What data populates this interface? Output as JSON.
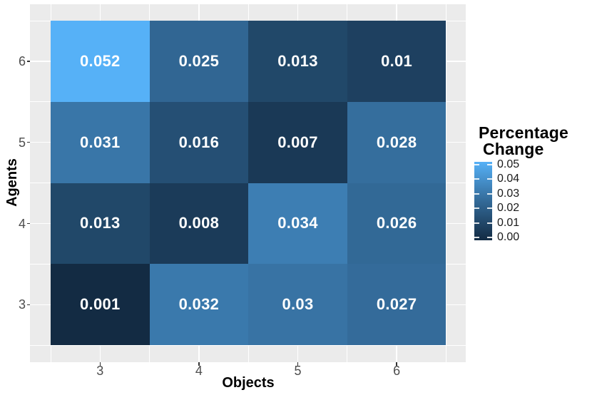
{
  "figure": {
    "background": "#FFFFFF",
    "panel_background": "#EBEBEB",
    "gridline_color": "#FFFFFF",
    "axis_text_color": "#4D4D4D",
    "axis_title_color": "#000000",
    "tick_mark_color": "#333333",
    "cell_text_color": "#FFFFFF"
  },
  "chart_data": {
    "type": "heatmap",
    "xlabel": "Objects",
    "ylabel": "Agents",
    "x_ticks": [
      "3",
      "4",
      "5",
      "6"
    ],
    "y_ticks": [
      "6",
      "5",
      "4",
      "3"
    ],
    "x_range": [
      2.5,
      6.5
    ],
    "y_range": [
      2.5,
      6.5
    ],
    "grid": true,
    "legend": {
      "title_lines": [
        "Percentage",
        "Change"
      ],
      "position": "right",
      "tick_labels": [
        "0.05",
        "0.04",
        "0.03",
        "0.02",
        "0.01",
        "0.00"
      ],
      "gradient_low": "#132B43",
      "gradient_mid": "#336A98",
      "gradient_high": "#56B1F7",
      "domain": [
        0.001,
        0.052
      ]
    },
    "rows": [
      {
        "agents": "6",
        "values": [
          0.052,
          0.025,
          0.013,
          0.01
        ],
        "labels": [
          "0.052",
          "0.025",
          "0.013",
          "0.01"
        ],
        "colors": [
          "#56B1F7",
          "#316693",
          "#214869",
          "#1E4060"
        ]
      },
      {
        "agents": "5",
        "values": [
          0.031,
          0.016,
          0.007,
          0.028
        ],
        "labels": [
          "0.031",
          "0.016",
          "0.007",
          "0.028"
        ],
        "colors": [
          "#3976A8",
          "#254F74",
          "#1A3956",
          "#356E9D"
        ]
      },
      {
        "agents": "4",
        "values": [
          0.013,
          0.008,
          0.034,
          0.026
        ],
        "labels": [
          "0.013",
          "0.008",
          "0.034",
          "0.026"
        ],
        "colors": [
          "#214869",
          "#1B3B59",
          "#3D7EB3",
          "#326996"
        ]
      },
      {
        "agents": "3",
        "values": [
          0.001,
          0.032,
          0.03,
          0.027
        ],
        "labels": [
          "0.001",
          "0.032",
          "0.03",
          "0.027"
        ],
        "colors": [
          "#132B43",
          "#3A79AC",
          "#3873A4",
          "#346B9A"
        ]
      }
    ]
  }
}
